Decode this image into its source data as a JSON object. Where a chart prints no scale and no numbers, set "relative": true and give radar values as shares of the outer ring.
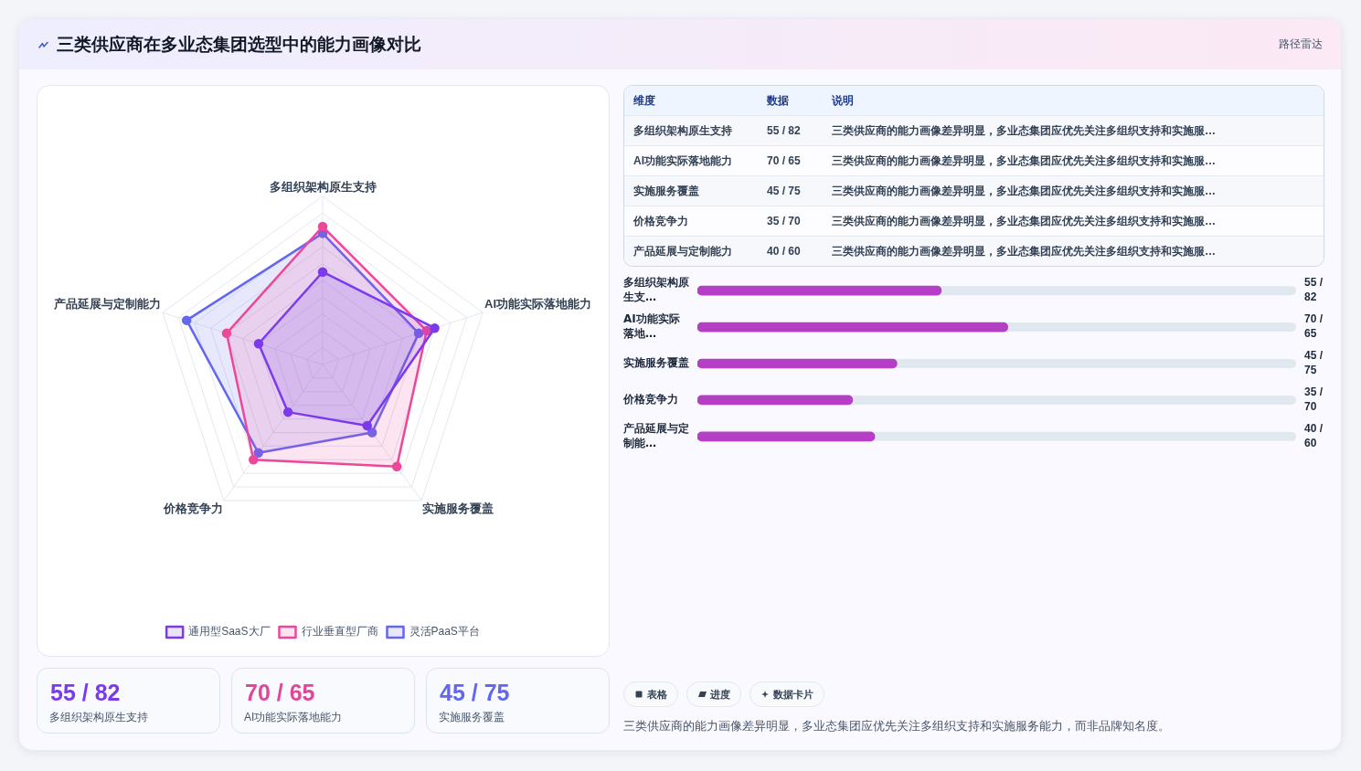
{
  "chart_data": [
    {
      "type": "other",
      "title": "三类供应商在多业态集团选型中的能力画像对比",
      "subtitle": "路径雷达"
    },
    {
      "type": "radar",
      "categories": [
        "多组织架构原生支持",
        "AI功能实际落地能力",
        "实施服务覆盖",
        "价格竞争力",
        "产品延展与定制能力"
      ],
      "series": [
        {
          "name": "通用型SaaS大厂",
          "color": "#7c3aed",
          "values": [
            0.55,
            0.7,
            0.45,
            0.35,
            0.4
          ]
        },
        {
          "name": "行业垂直型厂商",
          "color": "#ec4899",
          "values": [
            0.82,
            0.65,
            0.75,
            0.7,
            0.6
          ]
        },
        {
          "name": "灵活PaaS平台",
          "color": "#6366f1",
          "values": [
            0.78,
            0.6,
            0.5,
            0.65,
            0.85
          ]
        }
      ],
      "relative": true,
      "grid": true,
      "legend": "bottom",
      "marker": "circle"
    },
    {
      "type": "other",
      "categories": [
        "多组织架构原生支持",
        "AI功能实际落地能力",
        "实施服务覆盖",
        "价格竞争力",
        "产品延展与定制能力"
      ],
      "value_labels": [
        "55 / 82",
        "70 / 65",
        "45 / 75",
        "35 / 70",
        "40 / 60"
      ],
      "annotations": [
        "维度",
        "数据",
        "说明",
        "三类供应商的能力画像差异明显，多业态集团应优先关注多组织支持和实施服…",
        "三类供应商的能力画像差异明显，多业态集团应优先关注多组织支持和实施服…",
        "三类供应商的能力画像差异明显，多业态集团应优先关注多组织支持和实施服…",
        "三类供应商的能力画像差异明显，多业态集团应优先关注多组织支持和实施服…",
        "三类供应商的能力画像差异明显，多业态集团应优先关注多组织支持和实施服…"
      ]
    },
    {
      "type": "bar",
      "orientation": "horizontal",
      "categories": [
        "多组织架构原生支…",
        "AI功能实际落地…",
        "实施服务覆盖",
        "价格竞争力",
        "产品延展与定制能…"
      ],
      "values": [
        55,
        70,
        45,
        35,
        40
      ],
      "value_labels": [
        "55 / 82",
        "70 / 65",
        "45 / 75",
        "35 / 70",
        "40 / 60"
      ],
      "color": "#b43fc4",
      "xlim": [
        0,
        135
      ],
      "tick_labels": "y"
    },
    {
      "type": "other",
      "annotations": [
        "55 / 82",
        "多组织架构原生支持",
        "70 / 65",
        "AI功能实际落地能力",
        "45 / 75",
        "实施服务覆盖"
      ]
    },
    {
      "type": "other",
      "annotations": [
        "表格",
        "进度",
        "数据卡片",
        "三类供应商的能力画像差异明显，多业态集团应优先关注多组织支持和实施服务能力，而非品牌知名度。"
      ]
    }
  ]
}
